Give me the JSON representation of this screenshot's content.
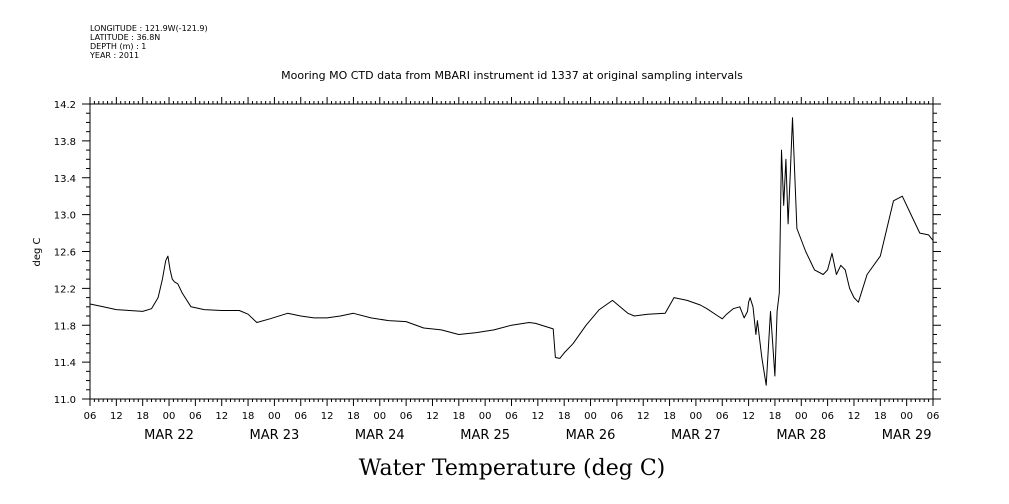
{
  "header": {
    "longitude": "LONGITUDE : 121.9W(-121.9)",
    "latitude": "LATITUDE : 36.8N",
    "depth": "DEPTH (m) : 1",
    "year": "YEAR : 2011"
  },
  "chart_data": {
    "type": "line",
    "title": "Mooring MO CTD data from MBARI instrument id 1337 at original sampling intervals",
    "xlabel": "Water Temperature (deg C)",
    "ylabel": "deg C",
    "ylim": [
      11.0,
      14.2
    ],
    "yticks": [
      "11.0",
      "11.4",
      "11.8",
      "12.2",
      "12.6",
      "13.0",
      "13.4",
      "13.8",
      "14.2"
    ],
    "xlim": [
      "2011-03-21T06:00",
      "2011-03-29T06:00"
    ],
    "hour_ticks": [
      "06",
      "12",
      "18",
      "00",
      "06",
      "12",
      "18",
      "00",
      "06",
      "12",
      "18",
      "00",
      "06",
      "12",
      "18",
      "00",
      "06",
      "12",
      "18",
      "00",
      "06",
      "12",
      "18",
      "00",
      "06",
      "12",
      "18",
      "00",
      "06",
      "12",
      "18",
      "00",
      "06"
    ],
    "day_labels": [
      {
        "label": "MAR 22",
        "x": "2011-03-22T00:00"
      },
      {
        "label": "MAR 23",
        "x": "2011-03-23T00:00"
      },
      {
        "label": "MAR 24",
        "x": "2011-03-24T00:00"
      },
      {
        "label": "MAR 25",
        "x": "2011-03-25T00:00"
      },
      {
        "label": "MAR 26",
        "x": "2011-03-26T00:00"
      },
      {
        "label": "MAR 27",
        "x": "2011-03-27T00:00"
      },
      {
        "label": "MAR 28",
        "x": "2011-03-28T00:00"
      },
      {
        "label": "MAR 29",
        "x": "2011-03-29T00:00"
      }
    ],
    "series": [
      {
        "x": [
          "2011-03-21T06:00",
          "2011-03-21T09:00",
          "2011-03-21T12:00",
          "2011-03-21T15:00",
          "2011-03-21T18:00",
          "2011-03-21T20:00",
          "2011-03-21T21:30",
          "2011-03-21T22:30",
          "2011-03-21T23:15",
          "2011-03-21T23:45",
          "2011-03-22T00:15",
          "2011-03-22T00:45",
          "2011-03-22T01:15",
          "2011-03-22T02:00",
          "2011-03-22T03:00",
          "2011-03-22T05:00",
          "2011-03-22T08:00",
          "2011-03-22T12:00",
          "2011-03-22T16:00",
          "2011-03-22T18:00",
          "2011-03-22T20:00",
          "2011-03-22T23:00",
          "2011-03-23T03:00",
          "2011-03-23T06:00",
          "2011-03-23T09:00",
          "2011-03-23T12:00",
          "2011-03-23T15:00",
          "2011-03-23T18:00",
          "2011-03-23T22:00",
          "2011-03-24T02:00",
          "2011-03-24T06:00",
          "2011-03-24T10:00",
          "2011-03-24T14:00",
          "2011-03-24T18:00",
          "2011-03-24T22:00",
          "2011-03-25T02:00",
          "2011-03-25T06:00",
          "2011-03-25T10:00",
          "2011-03-25T11:30",
          "2011-03-25T15:30",
          "2011-03-25T16:00",
          "2011-03-25T17:00",
          "2011-03-25T18:00",
          "2011-03-25T20:00",
          "2011-03-25T23:00",
          "2011-03-26T02:00",
          "2011-03-26T05:00",
          "2011-03-26T07:30",
          "2011-03-26T08:30",
          "2011-03-26T10:00",
          "2011-03-26T13:00",
          "2011-03-26T17:00",
          "2011-03-26T19:00",
          "2011-03-26T22:00",
          "2011-03-27T01:00",
          "2011-03-27T02:30",
          "2011-03-27T05:00",
          "2011-03-27T06:00",
          "2011-03-27T07:00",
          "2011-03-27T08:30",
          "2011-03-27T10:00",
          "2011-03-27T11:00",
          "2011-03-27T11:45",
          "2011-03-27T12:00",
          "2011-03-27T12:20",
          "2011-03-27T12:40",
          "2011-03-27T13:00",
          "2011-03-27T13:40",
          "2011-03-27T14:00",
          "2011-03-27T15:00",
          "2011-03-27T16:00",
          "2011-03-27T17:00",
          "2011-03-27T18:00",
          "2011-03-27T18:30",
          "2011-03-27T19:00",
          "2011-03-27T19:30",
          "2011-03-27T20:00",
          "2011-03-27T20:30",
          "2011-03-27T21:00",
          "2011-03-27T21:30",
          "2011-03-27T22:00",
          "2011-03-27T23:00",
          "2011-03-28T01:00",
          "2011-03-28T03:00",
          "2011-03-28T05:00",
          "2011-03-28T06:00",
          "2011-03-28T07:00",
          "2011-03-28T08:00",
          "2011-03-28T09:00",
          "2011-03-28T10:00",
          "2011-03-28T11:00",
          "2011-03-28T12:00",
          "2011-03-28T13:00",
          "2011-03-28T15:00",
          "2011-03-28T18:00",
          "2011-03-28T21:00",
          "2011-03-28T23:00",
          "2011-03-29T01:00",
          "2011-03-29T03:00",
          "2011-03-29T05:00",
          "2011-03-29T06:00"
        ],
        "values": [
          12.03,
          12.0,
          11.97,
          11.96,
          11.95,
          11.98,
          12.1,
          12.3,
          12.5,
          12.55,
          12.4,
          12.3,
          12.27,
          12.25,
          12.15,
          12.0,
          11.97,
          11.96,
          11.96,
          11.92,
          11.83,
          11.87,
          11.93,
          11.9,
          11.88,
          11.88,
          11.9,
          11.93,
          11.88,
          11.85,
          11.84,
          11.77,
          11.75,
          11.7,
          11.72,
          11.75,
          11.8,
          11.83,
          11.82,
          11.76,
          11.45,
          11.44,
          11.5,
          11.6,
          11.8,
          11.97,
          12.07,
          11.97,
          11.93,
          11.9,
          11.92,
          11.93,
          12.1,
          12.07,
          12.02,
          11.98,
          11.9,
          11.87,
          11.92,
          11.98,
          12.0,
          11.88,
          11.95,
          12.05,
          12.1,
          12.05,
          12.0,
          11.7,
          11.85,
          11.45,
          11.15,
          11.95,
          11.25,
          11.95,
          12.15,
          13.7,
          13.1,
          13.6,
          12.9,
          13.45,
          14.05,
          12.85,
          12.6,
          12.4,
          12.35,
          12.4,
          12.58,
          12.35,
          12.45,
          12.4,
          12.2,
          12.1,
          12.05,
          12.35,
          12.55,
          13.15,
          13.2,
          13.0,
          12.8,
          12.78,
          12.72
        ]
      }
    ]
  }
}
